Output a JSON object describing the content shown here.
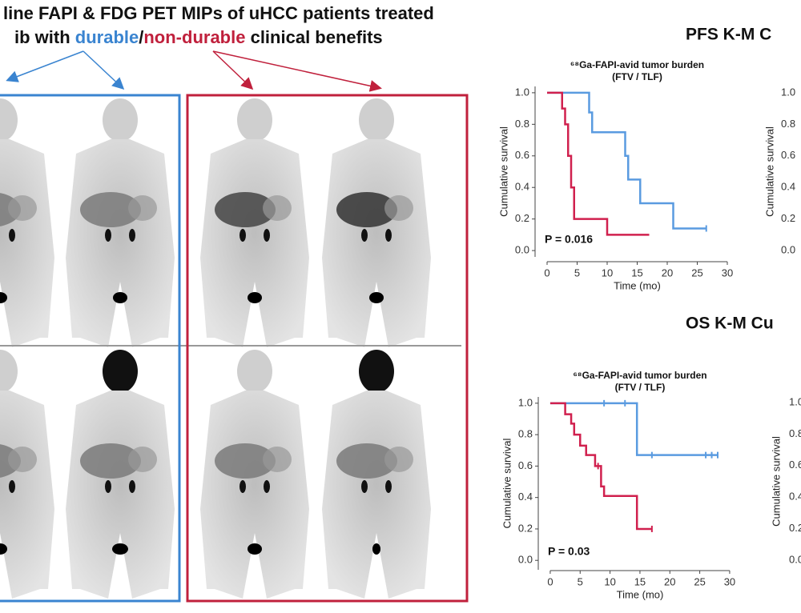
{
  "header": {
    "title_line1": "line FAPI & FDG PET MIPs of uHCC patients treated",
    "title_line2": [
      "ib with ",
      "durable",
      "/",
      "non-durable",
      " clinical benefits"
    ]
  },
  "section_titles": [
    "PFS K-M C",
    "OS K-M Cu"
  ],
  "chart_data": [
    {
      "type": "line",
      "title": "⁶⁸Ga-FAPI-avid tumor burden",
      "subtitle": "(FTV / TLF)",
      "x_label": "Time (mo)",
      "y_label": "Cumulative survival",
      "annotation": "P = 0.016",
      "xlim": [
        -2,
        31
      ],
      "ylim": [
        -0.04,
        1.04
      ],
      "xticks": [
        0,
        5,
        10,
        15,
        20,
        25,
        30
      ],
      "yticks": [
        {
          "value": 0,
          "label": "0.0"
        },
        0.2,
        0.4,
        0.6,
        0.8,
        {
          "value": 1,
          "label": "1.0"
        }
      ],
      "series": [
        {
          "color": "#5a9be0",
          "x": [
            0,
            7,
            7.5,
            13,
            13.5,
            15.5,
            21,
            26.5
          ],
          "values": [
            1,
            0.875,
            0.75,
            0.6,
            0.45,
            0.3,
            0.14,
            0.14
          ],
          "censored_x": [
            26.5
          ],
          "censored_values": [
            0.14
          ]
        },
        {
          "color": "#d0204e",
          "x": [
            0,
            2.5,
            3,
            3.5,
            4,
            4.5,
            10,
            17
          ],
          "values": [
            1,
            0.9,
            0.8,
            0.6,
            0.4,
            0.2,
            0.1,
            0.1
          ],
          "censored_x": [],
          "censored_values": []
        }
      ]
    },
    {
      "type": "line",
      "title": "⁶⁸Ga-FAPI-avid tumor burden",
      "subtitle": "(FTV / TLF)",
      "x_label": "Time (mo)",
      "y_label": "Cumulative survival",
      "annotation": "P = 0.03",
      "xlim": [
        -2,
        31
      ],
      "ylim": [
        -0.06,
        1.04
      ],
      "xticks": [
        0,
        5,
        10,
        15,
        20,
        25,
        30
      ],
      "yticks": [
        {
          "value": 0,
          "label": "0.0"
        },
        0.2,
        0.4,
        0.6,
        0.8,
        {
          "value": 1,
          "label": "1.0"
        }
      ],
      "series": [
        {
          "color": "#5a9be0",
          "x": [
            0,
            14.5,
            28
          ],
          "values": [
            1,
            0.67,
            0.67
          ],
          "censored_x": [
            9,
            12.5,
            17,
            26,
            27,
            28
          ],
          "censored_values": [
            1,
            1,
            0.67,
            0.67,
            0.67,
            0.67
          ]
        },
        {
          "color": "#d0204e",
          "x": [
            0,
            2.5,
            3.5,
            4,
            5,
            6,
            7.5,
            8.5,
            9,
            14.5,
            17
          ],
          "values": [
            1,
            0.93,
            0.87,
            0.8,
            0.73,
            0.67,
            0.6,
            0.47,
            0.41,
            0.2,
            0.2
          ],
          "censored_x": [
            8,
            17
          ],
          "censored_values": [
            0.6,
            0.2
          ]
        }
      ]
    }
  ],
  "partial_axes": [
    {
      "y_label": "Cumulative survival",
      "ytick_labels": [
        "1.0",
        "0.8",
        "0.6",
        "0.4",
        "0.2",
        "0.0"
      ]
    },
    {
      "y_label": "Cumulative survival",
      "ytick_labels": [
        "1.0",
        "0.8",
        "0.6",
        "0.4",
        "0.2",
        "0.0"
      ]
    }
  ]
}
